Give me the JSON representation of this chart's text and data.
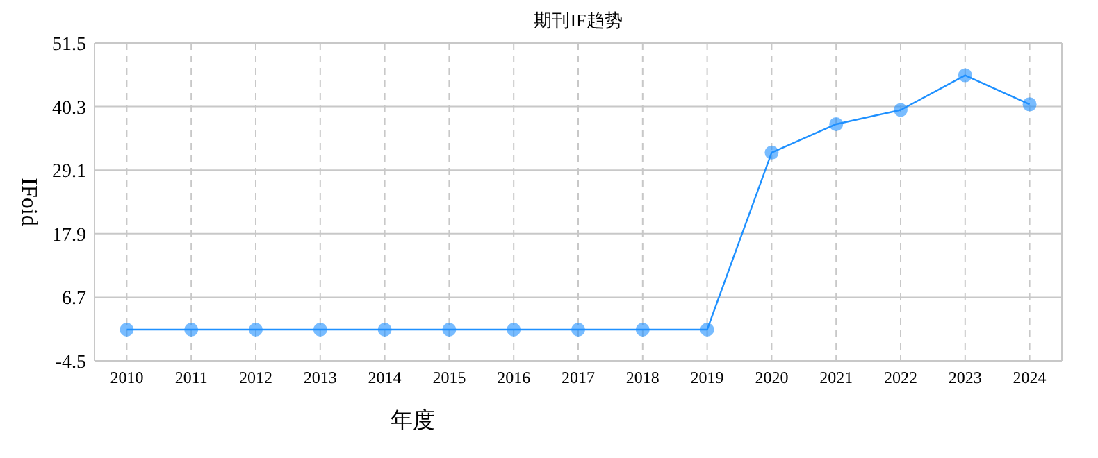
{
  "chart_data": {
    "type": "line",
    "title": "期刊IF趋势",
    "xlabel": "年度",
    "ylabel": "IFoid",
    "categories": [
      "2010",
      "2011",
      "2012",
      "2013",
      "2014",
      "2015",
      "2016",
      "2017",
      "2018",
      "2019",
      "2020",
      "2021",
      "2022",
      "2023",
      "2024"
    ],
    "series": [
      {
        "color": "#1e90ff",
        "values": [
          1.0,
          1.0,
          1.0,
          1.0,
          1.0,
          1.0,
          1.0,
          1.0,
          1.0,
          1.0,
          32.2,
          37.2,
          39.7,
          45.8,
          40.7
        ]
      }
    ],
    "ylim": [
      -4.5,
      51.5
    ],
    "yticks": [
      -4.5,
      6.7,
      17.9,
      29.1,
      40.3,
      51.5
    ],
    "grid": true,
    "marker": "circle",
    "line_style": "solid"
  }
}
